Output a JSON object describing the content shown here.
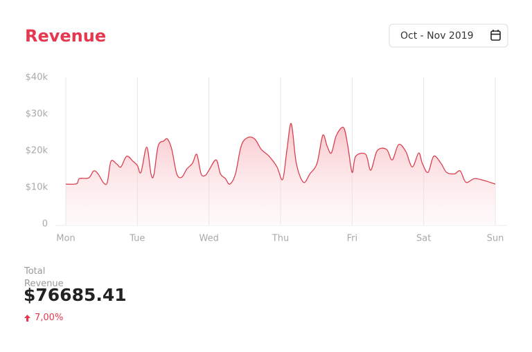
{
  "header": {
    "title": "Revenue",
    "date_range": "Oct - Nov 2019"
  },
  "chart_data": {
    "type": "area",
    "x": [
      0,
      0.15,
      0.19,
      0.32,
      0.39,
      0.45,
      0.53,
      0.58,
      0.63,
      0.71,
      0.77,
      0.85,
      0.94,
      1.0,
      1.05,
      1.13,
      1.19,
      1.23,
      1.29,
      1.37,
      1.42,
      1.48,
      1.55,
      1.62,
      1.69,
      1.77,
      1.83,
      1.89,
      1.95,
      2.0,
      2.1,
      2.16,
      2.23,
      2.29,
      2.37,
      2.45,
      2.54,
      2.64,
      2.73,
      2.84,
      2.95,
      3.03,
      3.09,
      3.15,
      3.22,
      3.32,
      3.41,
      3.51,
      3.59,
      3.65,
      3.71,
      3.78,
      3.88,
      3.94,
      4.0,
      4.05,
      4.19,
      4.26,
      4.35,
      4.48,
      4.56,
      4.65,
      4.75,
      4.84,
      4.93,
      4.98,
      5.06,
      5.14,
      5.24,
      5.32,
      5.43,
      5.51,
      5.59,
      5.71,
      5.86,
      6.0
    ],
    "values": [
      10900,
      11000,
      12400,
      12600,
      14500,
      13700,
      11200,
      11400,
      17100,
      16400,
      15600,
      18500,
      17100,
      16000,
      14100,
      21000,
      13700,
      13400,
      21300,
      22700,
      23200,
      20400,
      13700,
      12800,
      15000,
      16600,
      19000,
      13700,
      13300,
      14700,
      17500,
      13700,
      12400,
      10900,
      13700,
      21300,
      23600,
      23200,
      20400,
      18500,
      15600,
      12200,
      20400,
      27400,
      16600,
      11400,
      13700,
      16600,
      24200,
      21300,
      19400,
      24200,
      26300,
      21300,
      14100,
      18500,
      19000,
      14700,
      20000,
      20400,
      17500,
      21700,
      19800,
      15600,
      19400,
      16600,
      14100,
      18500,
      16600,
      14100,
      13700,
      14500,
      11400,
      12400,
      11800,
      10900
    ],
    "color": "#d9404f",
    "xlim": [
      0,
      6
    ],
    "xticks": [
      {
        "value": 0,
        "label": "Mon"
      },
      {
        "value": 1,
        "label": "Tue"
      },
      {
        "value": 2,
        "label": "Wed"
      },
      {
        "value": 3,
        "label": "Thu"
      },
      {
        "value": 4,
        "label": "Fri"
      },
      {
        "value": 5,
        "label": "Sat"
      },
      {
        "value": 6,
        "label": "Sun"
      }
    ],
    "ylim": [
      0,
      40000
    ],
    "yticks": [
      0,
      {
        "value": 10000,
        "label": "$10k"
      },
      {
        "value": 20000,
        "label": "$20k"
      },
      {
        "value": 30000,
        "label": "$30k"
      },
      {
        "value": 40000,
        "label": "$40k"
      }
    ],
    "grid": true
  },
  "summary": {
    "label": "Total Revenue",
    "value": "$76685.41",
    "change": "7,00%"
  }
}
